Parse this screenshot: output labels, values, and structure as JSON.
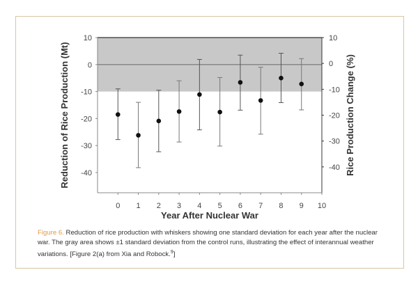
{
  "chart_data": {
    "type": "scatter",
    "subtype": "error-bar",
    "xlabel": "Year After Nuclear War",
    "ylabel": "Reduction of Rice Production (Mt)",
    "y2label": "Rice Production Change (%)",
    "xlim": [
      -1,
      10
    ],
    "ylim": [
      -47.5,
      10
    ],
    "y2lim": [
      -50,
      10
    ],
    "xticks": [
      "0",
      "1",
      "2",
      "3",
      "4",
      "5",
      "6",
      "7",
      "8",
      "9",
      "10"
    ],
    "yticks": [
      "10",
      "0",
      "-10",
      "-20",
      "-30",
      "-40"
    ],
    "y2ticks": [
      "10",
      "0",
      "-10",
      "-20",
      "-30",
      "-40"
    ],
    "band": {
      "from": -10,
      "to": 10,
      "color": "#c8c8c8"
    },
    "zero_line": true,
    "x": [
      0,
      1,
      2,
      3,
      4,
      5,
      6,
      7,
      8,
      9
    ],
    "mean": [
      -18.5,
      -26.2,
      -20.9,
      -17.4,
      -11.1,
      -17.6,
      -6.6,
      -13.3,
      -5.0,
      -7.2
    ],
    "lower": [
      -27.8,
      -38.2,
      -32.3,
      -28.7,
      -24.2,
      -30.2,
      -16.9,
      -25.8,
      -14.1,
      -16.8
    ],
    "upper": [
      -9.0,
      -14.0,
      -9.5,
      -6.0,
      1.9,
      -4.8,
      3.5,
      -1.0,
      4.2,
      2.2
    ],
    "grid": false
  },
  "caption": {
    "label": "Figure 6.",
    "text": " Reduction of rice production with whiskers showing one standard deviation for each year after the nuclear war. The gray area shows ±1 standard deviation from the control runs, illustrating the effect of interannual weather variations.  [Figure 2(a) from Xia and Robock.",
    "ref": "9",
    "end": "]"
  }
}
